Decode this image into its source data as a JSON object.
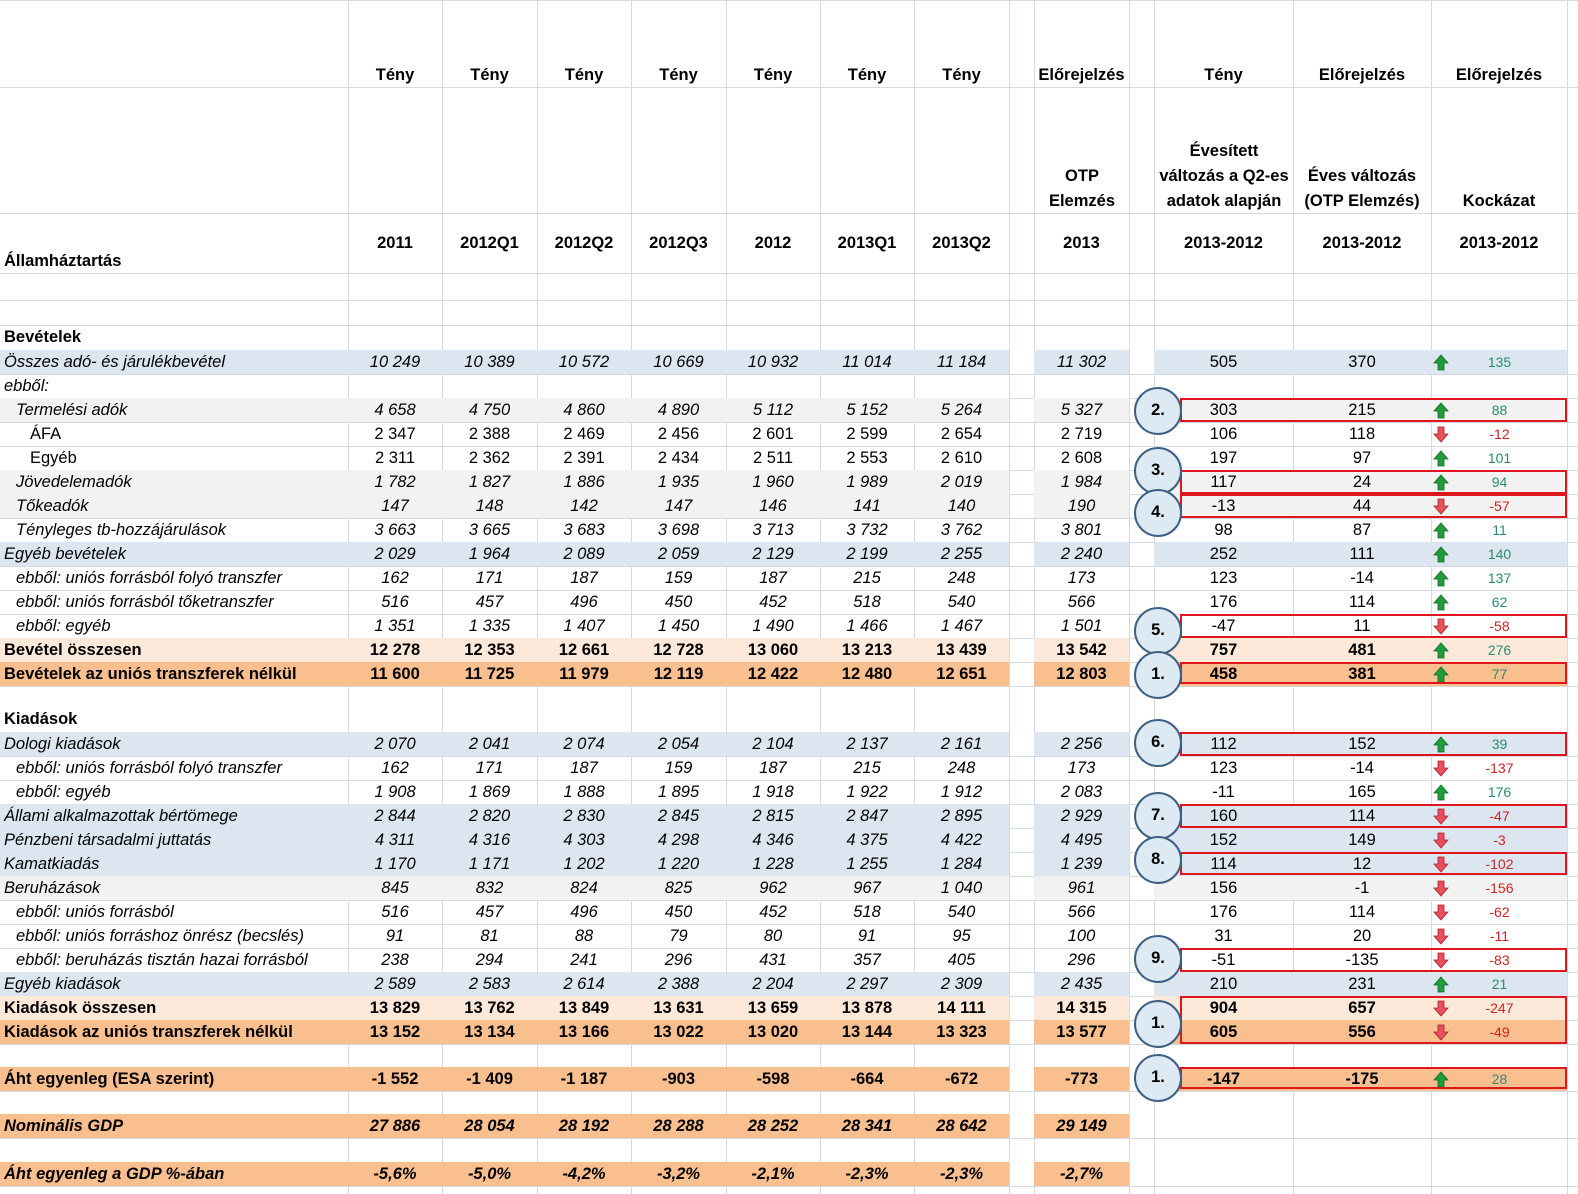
{
  "header": {
    "type_row": [
      "Tény",
      "Tény",
      "Tény",
      "Tény",
      "Tény",
      "Tény",
      "Tény",
      "Előrejelzés",
      "Tény",
      "Előrejelzés",
      "Előrejelzés"
    ],
    "forecast_desc": [
      "OTP",
      "Elemzés"
    ],
    "annualized_desc": [
      "Évesített",
      "változás a Q2-es",
      "adatok alapján"
    ],
    "annual_desc": [
      "Éves változás",
      "(OTP Elemzés)"
    ],
    "risk_desc": "Kockázat",
    "periods": [
      "2011",
      "2012Q1",
      "2012Q2",
      "2012Q3",
      "2012",
      "2013Q1",
      "2013Q2",
      "2013",
      "2013-2012",
      "2013-2012",
      "2013-2012"
    ],
    "table_title": "Államháztartás"
  },
  "sections": {
    "revenue": "Bevételek",
    "expenditure": "Kiadások"
  },
  "rows": [
    {
      "label": "Összes adó- és járulékbevétel",
      "values": [
        "10 249",
        "10 389",
        "10 572",
        "10 669",
        "10 932",
        "11 014",
        "11 184",
        "11 302",
        "505",
        "370",
        "135"
      ],
      "dir": "up"
    },
    {
      "label": "ebből:",
      "values": []
    },
    {
      "label": "Termelési adók",
      "values": [
        "4 658",
        "4 750",
        "4 860",
        "4 890",
        "5 112",
        "5 152",
        "5 264",
        "5 327",
        "303",
        "215",
        "88"
      ],
      "dir": "up"
    },
    {
      "label": "ÁFA",
      "values": [
        "2 347",
        "2 388",
        "2 469",
        "2 456",
        "2 601",
        "2 599",
        "2 654",
        "2 719",
        "106",
        "118",
        "-12"
      ],
      "dir": "down"
    },
    {
      "label": "Egyéb",
      "values": [
        "2 311",
        "2 362",
        "2 391",
        "2 434",
        "2 511",
        "2 553",
        "2 610",
        "2 608",
        "197",
        "97",
        "101"
      ],
      "dir": "up"
    },
    {
      "label": "Jövedelemadók",
      "values": [
        "1 782",
        "1 827",
        "1 886",
        "1 935",
        "1 960",
        "1 989",
        "2 019",
        "1 984",
        "117",
        "24",
        "94"
      ],
      "dir": "up"
    },
    {
      "label": "Tőkeadók",
      "values": [
        "147",
        "148",
        "142",
        "147",
        "146",
        "141",
        "140",
        "190",
        "-13",
        "44",
        "-57"
      ],
      "dir": "down"
    },
    {
      "label": "Tényleges tb-hozzájárulások",
      "values": [
        "3 663",
        "3 665",
        "3 683",
        "3 698",
        "3 713",
        "3 732",
        "3 762",
        "3 801",
        "98",
        "87",
        "11"
      ],
      "dir": "up"
    },
    {
      "label": "Egyéb bevételek",
      "values": [
        "2 029",
        "1 964",
        "2 089",
        "2 059",
        "2 129",
        "2 199",
        "2 255",
        "2 240",
        "252",
        "111",
        "140"
      ],
      "dir": "up"
    },
    {
      "label": "ebből: uniós forrásból folyó transzfer",
      "values": [
        "162",
        "171",
        "187",
        "159",
        "187",
        "215",
        "248",
        "173",
        "123",
        "-14",
        "137"
      ],
      "dir": "up"
    },
    {
      "label": "ebből: uniós forrásból tőketranszfer",
      "values": [
        "516",
        "457",
        "496",
        "450",
        "452",
        "518",
        "540",
        "566",
        "176",
        "114",
        "62"
      ],
      "dir": "up"
    },
    {
      "label": "ebből: egyéb",
      "values": [
        "1 351",
        "1 335",
        "1 407",
        "1 450",
        "1 490",
        "1 466",
        "1 467",
        "1 501",
        "-47",
        "11",
        "-58"
      ],
      "dir": "down"
    },
    {
      "label": "Bevétel összesen",
      "values": [
        "12 278",
        "12 353",
        "12 661",
        "12 728",
        "13 060",
        "13 213",
        "13 439",
        "13 542",
        "757",
        "481",
        "276"
      ],
      "dir": "up"
    },
    {
      "label": "Bevételek az uniós transzferek nélkül",
      "values": [
        "11 600",
        "11 725",
        "11 979",
        "12 119",
        "12 422",
        "12 480",
        "12 651",
        "12 803",
        "458",
        "381",
        "77"
      ],
      "dir": "up"
    },
    {
      "label": "Dologi kiadások",
      "values": [
        "2 070",
        "2 041",
        "2 074",
        "2 054",
        "2 104",
        "2 137",
        "2 161",
        "2 256",
        "112",
        "152",
        "39"
      ],
      "dir": "up"
    },
    {
      "label": "ebből: uniós forrásból folyó transzfer",
      "values": [
        "162",
        "171",
        "187",
        "159",
        "187",
        "215",
        "248",
        "173",
        "123",
        "-14",
        "-137"
      ],
      "dir": "down"
    },
    {
      "label": "ebből: egyéb",
      "values": [
        "1 908",
        "1 869",
        "1 888",
        "1 895",
        "1 918",
        "1 922",
        "1 912",
        "2 083",
        "-11",
        "165",
        "176"
      ],
      "dir": "up"
    },
    {
      "label": "Állami alkalmazottak bértömege",
      "values": [
        "2 844",
        "2 820",
        "2 830",
        "2 845",
        "2 815",
        "2 847",
        "2 895",
        "2 929",
        "160",
        "114",
        "-47"
      ],
      "dir": "down"
    },
    {
      "label": "Pénzbeni társadalmi juttatás",
      "values": [
        "4 311",
        "4 316",
        "4 303",
        "4 298",
        "4 346",
        "4 375",
        "4 422",
        "4 495",
        "152",
        "149",
        "-3"
      ],
      "dir": "down"
    },
    {
      "label": "Kamatkiadás",
      "values": [
        "1 170",
        "1 171",
        "1 202",
        "1 220",
        "1 228",
        "1 255",
        "1 284",
        "1 239",
        "114",
        "12",
        "-102"
      ],
      "dir": "down"
    },
    {
      "label": "Beruházások",
      "values": [
        "845",
        "832",
        "824",
        "825",
        "962",
        "967",
        "1 040",
        "961",
        "156",
        "-1",
        "-156"
      ],
      "dir": "down"
    },
    {
      "label": "ebből: uniós forrásból",
      "values": [
        "516",
        "457",
        "496",
        "450",
        "452",
        "518",
        "540",
        "566",
        "176",
        "114",
        "-62"
      ],
      "dir": "down"
    },
    {
      "label": "ebből: uniós forráshoz önrész (becslés)",
      "values": [
        "91",
        "81",
        "88",
        "79",
        "80",
        "91",
        "95",
        "100",
        "31",
        "20",
        "-11"
      ],
      "dir": "down"
    },
    {
      "label": "ebből: beruházás tisztán hazai forrásból",
      "values": [
        "238",
        "294",
        "241",
        "296",
        "431",
        "357",
        "405",
        "296",
        "-51",
        "-135",
        "-83"
      ],
      "dir": "down"
    },
    {
      "label": "Egyéb kiadások",
      "values": [
        "2 589",
        "2 583",
        "2 614",
        "2 388",
        "2 204",
        "2 297",
        "2 309",
        "2 435",
        "210",
        "231",
        "21"
      ],
      "dir": "up"
    },
    {
      "label": "Kiadások összesen",
      "values": [
        "13 829",
        "13 762",
        "13 849",
        "13 631",
        "13 659",
        "13 878",
        "14 111",
        "14 315",
        "904",
        "657",
        "-247"
      ],
      "dir": "down"
    },
    {
      "label": "Kiadások az uniós transzferek nélkül",
      "values": [
        "13 152",
        "13 134",
        "13 166",
        "13 022",
        "13 020",
        "13 144",
        "13 323",
        "13 577",
        "605",
        "556",
        "-49"
      ],
      "dir": "down"
    },
    {
      "label": "Áht egyenleg (ESA szerint)",
      "values": [
        "-1 552",
        "-1 409",
        "-1 187",
        "-903",
        "-598",
        "-664",
        "-672",
        "-773",
        "-147",
        "-175",
        "28"
      ],
      "dir": "up"
    },
    {
      "label": "Nominális GDP",
      "values": [
        "27 886",
        "28 054",
        "28 192",
        "28 288",
        "28 252",
        "28 341",
        "28 642",
        "29 149"
      ]
    },
    {
      "label": "Áht egyenleg a GDP %-ában",
      "values": [
        "-5,6%",
        "-5,0%",
        "-4,2%",
        "-3,2%",
        "-2,1%",
        "-2,3%",
        "-2,3%",
        "-2,7%"
      ]
    }
  ],
  "markers": [
    "2.",
    "3.",
    "4.",
    "5.",
    "1.",
    "6.",
    "7.",
    "8.",
    "9.",
    "1.",
    "1."
  ],
  "colors": {
    "blue_band": "#dce6f1",
    "grey_band": "#f2f2f2",
    "light_orange": "#fde9d9",
    "orange": "#fabf8f",
    "red_box": "#e0161d",
    "arrow_up": "#1f9d3a",
    "arrow_down": "#e8505b",
    "circle_fill": "#dde9f3",
    "circle_border": "#3d5f82"
  }
}
